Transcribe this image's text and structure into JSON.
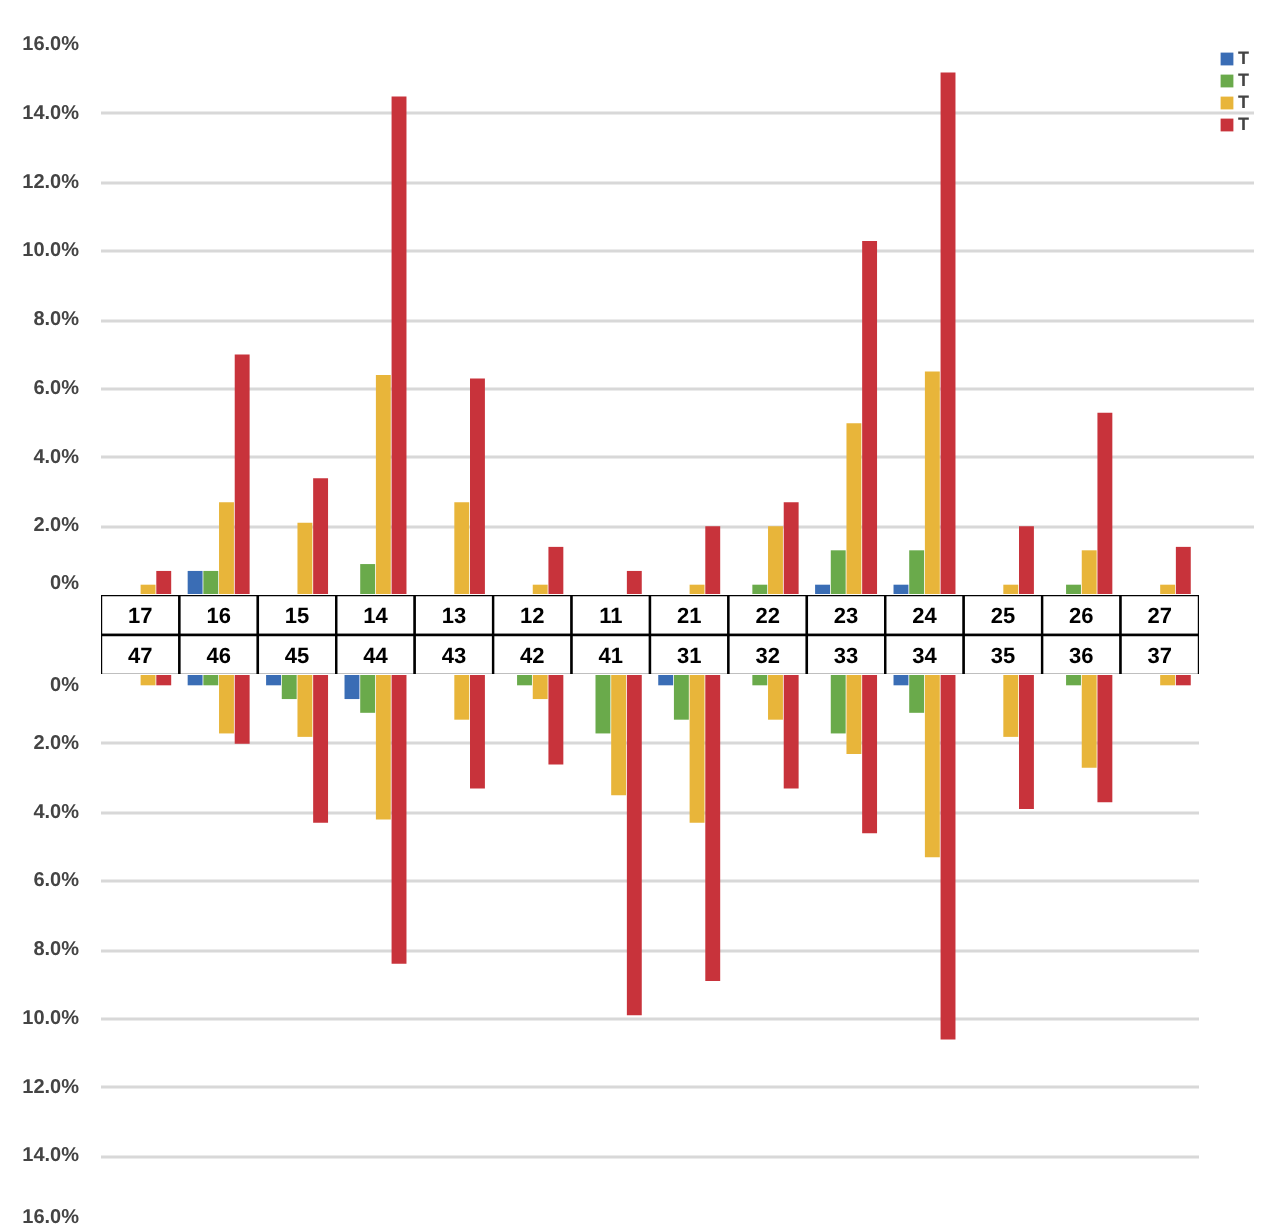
{
  "chart_data": [
    {
      "type": "bar",
      "categories": [
        "17",
        "16",
        "15",
        "14",
        "13",
        "12",
        "11",
        "21",
        "22",
        "23",
        "24",
        "25",
        "26",
        "27"
      ],
      "series": [
        {
          "name": "T",
          "color": "#3a6db5",
          "values": [
            null,
            0.7,
            null,
            null,
            null,
            null,
            null,
            null,
            null,
            0.3,
            0.3,
            null,
            null,
            null
          ]
        },
        {
          "name": "T",
          "color": "#6aaa4b",
          "values": [
            null,
            0.7,
            null,
            0.9,
            null,
            null,
            null,
            null,
            0.3,
            1.3,
            1.3,
            null,
            0.3,
            null
          ]
        },
        {
          "name": "T",
          "color": "#e8b53a",
          "values": [
            0.3,
            2.7,
            2.1,
            6.4,
            2.7,
            0.3,
            null,
            0.3,
            2.0,
            5.0,
            6.5,
            0.3,
            1.3,
            0.3
          ]
        },
        {
          "name": "T",
          "color": "#c8333b",
          "values": [
            0.7,
            7.0,
            3.4,
            14.5,
            6.3,
            1.4,
            0.7,
            2.0,
            2.7,
            10.3,
            15.2,
            2.0,
            5.3,
            1.4
          ]
        }
      ],
      "ylim": [
        0,
        16
      ],
      "yticks": [
        {
          "value": 0,
          "label": "0%"
        },
        {
          "value": 2,
          "label": "2.0%"
        },
        {
          "value": 4,
          "label": "4.0%"
        },
        {
          "value": 6,
          "label": "6.0%"
        },
        {
          "value": 8,
          "label": "8.0%"
        },
        {
          "value": 10,
          "label": "10.0%"
        },
        {
          "value": 12,
          "label": "12.0%"
        },
        {
          "value": 14,
          "label": "14.0%"
        },
        {
          "value": 16,
          "label": "16.0%"
        }
      ],
      "grid": "y",
      "legend": "top right"
    },
    {
      "type": "bar",
      "categories": [
        "47",
        "46",
        "45",
        "44",
        "43",
        "42",
        "41",
        "31",
        "32",
        "33",
        "34",
        "35",
        "36",
        "37"
      ],
      "series": [
        {
          "color": "#3a6db5",
          "values": [
            null,
            0.3,
            0.3,
            0.7,
            null,
            null,
            null,
            0.3,
            null,
            null,
            0.3,
            null,
            null,
            null
          ]
        },
        {
          "color": "#6aaa4b",
          "values": [
            null,
            0.3,
            0.7,
            1.1,
            null,
            0.3,
            1.7,
            1.3,
            0.3,
            1.7,
            1.1,
            null,
            0.3,
            null
          ]
        },
        {
          "color": "#e8b53a",
          "values": [
            0.3,
            1.7,
            1.8,
            4.2,
            1.3,
            0.7,
            3.5,
            4.3,
            1.3,
            2.3,
            5.3,
            1.8,
            2.7,
            0.3
          ]
        },
        {
          "color": "#c8333b",
          "values": [
            0.3,
            2.0,
            4.3,
            8.4,
            3.3,
            2.6,
            9.9,
            8.9,
            3.3,
            4.6,
            10.6,
            3.9,
            3.7,
            0.3
          ]
        }
      ],
      "ylim": [
        16,
        0
      ],
      "yticks": [
        {
          "value": 0,
          "label": "0%"
        },
        {
          "value": 2,
          "label": "2.0%"
        },
        {
          "value": 4,
          "label": "4.0%"
        },
        {
          "value": 6,
          "label": "6.0%"
        },
        {
          "value": 8,
          "label": "8.0%"
        },
        {
          "value": 10,
          "label": "10.0%"
        },
        {
          "value": 12,
          "label": "12.0%"
        },
        {
          "value": 14,
          "label": "14.0%"
        },
        {
          "value": 16,
          "label": "16.0%"
        }
      ],
      "grid": "y"
    }
  ]
}
